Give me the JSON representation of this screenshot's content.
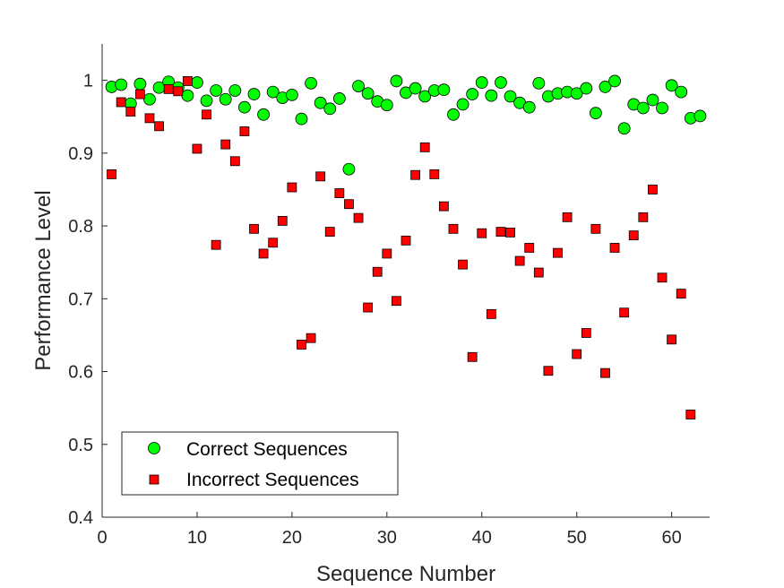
{
  "chart_data": {
    "type": "scatter",
    "title": "",
    "xlabel": "Sequence Number",
    "ylabel": "Performance Level",
    "xlim": [
      0,
      64
    ],
    "ylim": [
      0.4,
      1.05
    ],
    "xticks": [
      0,
      10,
      20,
      30,
      40,
      50,
      60
    ],
    "yticks": [
      0.4,
      0.5,
      0.6,
      0.7,
      0.8,
      0.9,
      1
    ],
    "xtick_labels": [
      "0",
      "10",
      "20",
      "30",
      "40",
      "50",
      "60"
    ],
    "ytick_labels": [
      "0.4",
      "0.5",
      "0.6",
      "0.7",
      "0.8",
      "0.9",
      "1"
    ],
    "grid": false,
    "legend_position": "bottom-left",
    "series": [
      {
        "name": "Correct Sequences",
        "marker": "circle",
        "color": "#00ff00",
        "x": [
          1,
          2,
          3,
          4,
          5,
          6,
          7,
          8,
          9,
          10,
          11,
          12,
          13,
          14,
          15,
          16,
          17,
          18,
          19,
          20,
          21,
          22,
          23,
          24,
          25,
          26,
          27,
          28,
          29,
          30,
          31,
          32,
          33,
          34,
          35,
          36,
          37,
          38,
          39,
          40,
          41,
          42,
          43,
          44,
          45,
          46,
          47,
          48,
          49,
          50,
          51,
          52,
          53,
          54,
          55,
          56,
          57,
          58,
          59,
          60,
          61,
          62,
          63
        ],
        "y": [
          0.991,
          0.994,
          0.968,
          0.995,
          0.974,
          0.99,
          0.998,
          0.99,
          0.979,
          0.997,
          0.972,
          0.986,
          0.974,
          0.986,
          0.963,
          0.981,
          0.953,
          0.984,
          0.976,
          0.98,
          0.947,
          0.996,
          0.969,
          0.961,
          0.975,
          0.878,
          0.992,
          0.982,
          0.971,
          0.966,
          0.999,
          0.983,
          0.989,
          0.978,
          0.986,
          0.987,
          0.953,
          0.967,
          0.981,
          0.997,
          0.979,
          0.997,
          0.978,
          0.969,
          0.963,
          0.996,
          0.978,
          0.982,
          0.984,
          0.982,
          0.989,
          0.955,
          0.991,
          0.999,
          0.934,
          0.967,
          0.962,
          0.973,
          0.962,
          0.993,
          0.984,
          0.948,
          0.951
        ]
      },
      {
        "name": "Incorrect Sequences",
        "marker": "square",
        "color": "#ff0000",
        "x": [
          1,
          2,
          3,
          4,
          5,
          6,
          7,
          8,
          9,
          10,
          11,
          12,
          13,
          14,
          15,
          16,
          17,
          18,
          19,
          20,
          21,
          22,
          23,
          24,
          25,
          26,
          27,
          28,
          29,
          30,
          31,
          32,
          33,
          34,
          35,
          36,
          37,
          38,
          39,
          40,
          41,
          42,
          43,
          44,
          45,
          46,
          47,
          48,
          49,
          50,
          51,
          52,
          53,
          54,
          55,
          56,
          57,
          58,
          59,
          60,
          61,
          62
        ],
        "y": [
          0.871,
          0.97,
          0.957,
          0.981,
          0.948,
          0.937,
          0.988,
          0.985,
          0.999,
          0.906,
          0.953,
          0.774,
          0.912,
          0.889,
          0.93,
          0.796,
          0.762,
          0.777,
          0.807,
          0.853,
          0.637,
          0.646,
          0.868,
          0.792,
          0.845,
          0.83,
          0.811,
          0.688,
          0.737,
          0.762,
          0.697,
          0.78,
          0.87,
          0.908,
          0.871,
          0.827,
          0.796,
          0.747,
          0.62,
          0.79,
          0.679,
          0.792,
          0.791,
          0.752,
          0.77,
          0.736,
          0.601,
          0.763,
          0.812,
          0.624,
          0.653,
          0.796,
          0.598,
          0.77,
          0.681,
          0.787,
          0.812,
          0.85,
          0.729,
          0.644,
          0.707,
          0.541
        ]
      }
    ]
  }
}
